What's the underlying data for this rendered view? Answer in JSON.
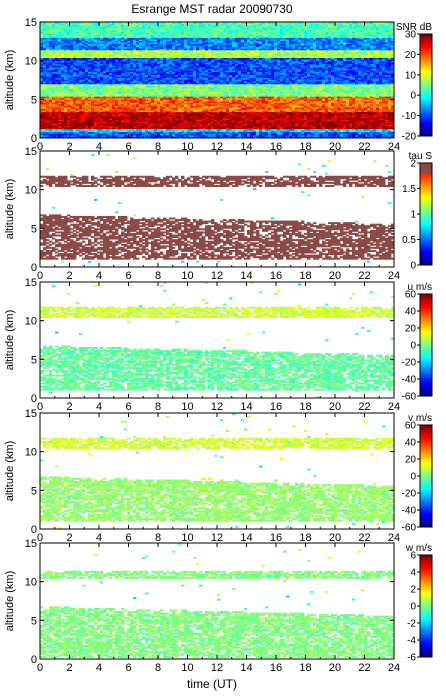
{
  "title": "Esrange MST radar 20090730",
  "xlabel": "time (UT)",
  "ylabel": "altitude (km)",
  "chart_data": [
    {
      "type": "heatmap",
      "quantity": "SNR",
      "colorbar_label": "SNR dB",
      "colorbar_ticks": [
        30,
        20,
        10,
        0,
        -10,
        -20
      ],
      "zlim": [
        -20,
        30
      ],
      "x_ticks": [
        "0",
        "2",
        "4",
        "6",
        "8",
        "10",
        "12",
        "14",
        "16",
        "18",
        "20",
        "22",
        "24"
      ],
      "xlim": [
        0,
        24
      ],
      "y_ticks": [
        "15",
        "10",
        "5",
        "0"
      ],
      "ylim": [
        0,
        15
      ],
      "layers_km": [
        {
          "from": 0.8,
          "to": 1.2,
          "level": 0.35
        },
        {
          "from": 1.2,
          "to": 3.5,
          "level": 0.95
        },
        {
          "from": 3.5,
          "to": 5.5,
          "level": 0.78
        },
        {
          "from": 5.5,
          "to": 7.0,
          "level": 0.5
        },
        {
          "from": 7.0,
          "to": 10.0,
          "level": 0.2
        },
        {
          "from": 10.5,
          "to": 11.5,
          "level": 0.55
        },
        {
          "from": 11.5,
          "to": 13.0,
          "level": 0.25
        },
        {
          "from": 13.0,
          "to": 15.0,
          "level": 0.45
        }
      ]
    },
    {
      "type": "heatmap",
      "quantity": "tau",
      "colorbar_label": "tau S",
      "colorbar_ticks": [
        2,
        1.5,
        1,
        0.5,
        0
      ],
      "zlim": [
        0,
        2
      ],
      "x_ticks": [
        "0",
        "2",
        "4",
        "6",
        "8",
        "10",
        "12",
        "14",
        "16",
        "18",
        "20",
        "22",
        "24"
      ],
      "xlim": [
        0,
        24
      ],
      "y_ticks": [
        "15",
        "10",
        "5",
        "0"
      ],
      "ylim": [
        0,
        15
      ],
      "layers_km": [
        {
          "from": 1.0,
          "to": 6.5,
          "level": 0.97
        },
        {
          "from": 10.5,
          "to": 11.8,
          "level": 0.97
        }
      ]
    },
    {
      "type": "heatmap",
      "quantity": "u",
      "colorbar_label": "u m/s",
      "colorbar_ticks": [
        60,
        40,
        20,
        0,
        -20,
        -40,
        -60
      ],
      "zlim": [
        -60,
        60
      ],
      "x_ticks": [
        "0",
        "2",
        "4",
        "6",
        "8",
        "10",
        "12",
        "14",
        "16",
        "18",
        "20",
        "22",
        "24"
      ],
      "xlim": [
        0,
        24
      ],
      "y_ticks": [
        "15",
        "10",
        "5",
        "0"
      ],
      "ylim": [
        0,
        15
      ],
      "layers_km": [
        {
          "from": 1.0,
          "to": 6.5,
          "level": 0.47
        },
        {
          "from": 10.5,
          "to": 11.8,
          "level": 0.58
        }
      ]
    },
    {
      "type": "heatmap",
      "quantity": "v",
      "colorbar_label": "v m/s",
      "colorbar_ticks": [
        60,
        40,
        20,
        0,
        -20,
        -40,
        -60
      ],
      "zlim": [
        -60,
        60
      ],
      "x_ticks": [
        "0",
        "2",
        "4",
        "6",
        "8",
        "10",
        "12",
        "14",
        "16",
        "18",
        "20",
        "22",
        "24"
      ],
      "xlim": [
        0,
        24
      ],
      "y_ticks": [
        "15",
        "10",
        "5",
        "0"
      ],
      "ylim": [
        0,
        15
      ],
      "layers_km": [
        {
          "from": 1.0,
          "to": 6.5,
          "level": 0.52
        },
        {
          "from": 10.5,
          "to": 11.8,
          "level": 0.58
        }
      ]
    },
    {
      "type": "heatmap",
      "quantity": "w",
      "colorbar_label": "w m/s",
      "colorbar_ticks": [
        6,
        4,
        2,
        0,
        -2,
        -4,
        -6
      ],
      "zlim": [
        -6,
        6
      ],
      "x_ticks": [
        "0",
        "2",
        "4",
        "6",
        "8",
        "10",
        "12",
        "14",
        "16",
        "18",
        "20",
        "22",
        "24"
      ],
      "xlim": [
        0,
        24
      ],
      "y_ticks": [
        "15",
        "10",
        "5",
        "0"
      ],
      "ylim": [
        0,
        15
      ],
      "layers_km": [
        {
          "from": 0.3,
          "to": 6.5,
          "level": 0.5
        },
        {
          "from": 10.5,
          "to": 11.5,
          "level": 0.5
        }
      ]
    }
  ]
}
